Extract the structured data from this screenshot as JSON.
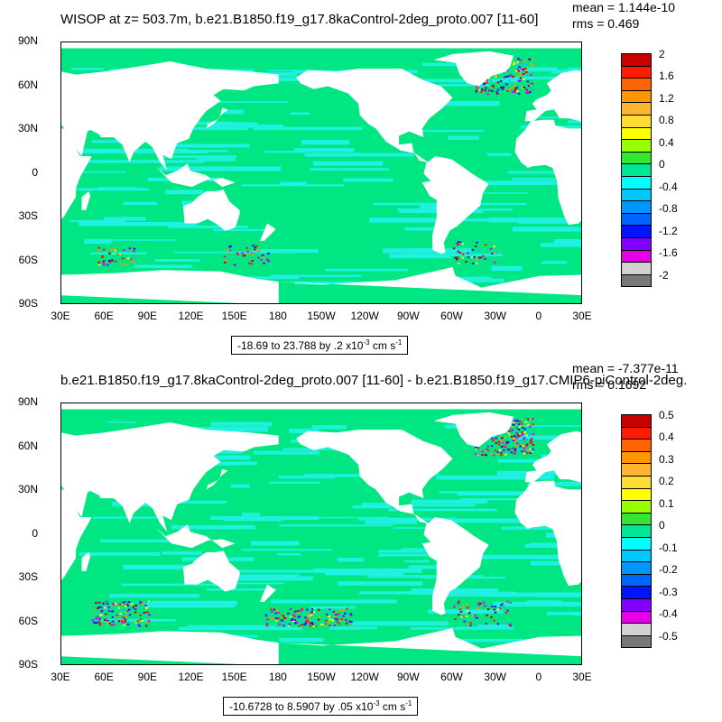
{
  "top": {
    "title": "WISOP at z= 503.7m, b.e21.B1850.f19_g17.8kaControl-2deg_proto.007 [11-60]",
    "mean": "mean = 1.144e-10",
    "rms": "rms = 0.469",
    "range_text": "-18.69 to 23.788 by .2 x10",
    "range_exp": "-3",
    "range_unit": " cm s",
    "range_unit_exp": "-1",
    "colorbar_labels": [
      "2",
      "1.6",
      "1.2",
      "0.8",
      "0.4",
      "0",
      "-0.4",
      "-0.8",
      "-1.2",
      "-1.6",
      "-2"
    ]
  },
  "bottom": {
    "title": "b.e21.B1850.f19_g17.8kaControl-2deg_proto.007 [11-60] - b.e21.B1850.f19_g17.CMIP6-piControl-2deg.",
    "mean": "mean = -7.377e-11",
    "rms": "rms = 0.1692",
    "range_text": "-10.6728 to 8.5907 by .05 x10",
    "range_exp": "-3",
    "range_unit": " cm s",
    "range_unit_exp": "-1",
    "colorbar_labels": [
      "0.5",
      "0.4",
      "0.3",
      "0.2",
      "0.1",
      "0",
      "-0.1",
      "-0.2",
      "-0.3",
      "-0.4",
      "-0.5"
    ]
  },
  "lat_labels": [
    "90N",
    "60N",
    "30N",
    "0",
    "30S",
    "60S",
    "90S"
  ],
  "lon_labels": [
    "30E",
    "60E",
    "90E",
    "120E",
    "150E",
    "180",
    "150W",
    "120W",
    "90W",
    "60W",
    "30W",
    "0",
    "30E"
  ],
  "colorbar_colors": [
    "#c80000",
    "#ff1a00",
    "#ff6400",
    "#ff9600",
    "#ffb432",
    "#ffdc32",
    "#ffff00",
    "#96ff00",
    "#32e632",
    "#00e696",
    "#00ffff",
    "#00c8ff",
    "#0096ff",
    "#0064ff",
    "#0014ff",
    "#8200ff",
    "#e600e6",
    "#d2d2d2",
    "#787878"
  ],
  "ocean_colors": {
    "base": "#00e682",
    "band": "#20f0e0"
  }
}
